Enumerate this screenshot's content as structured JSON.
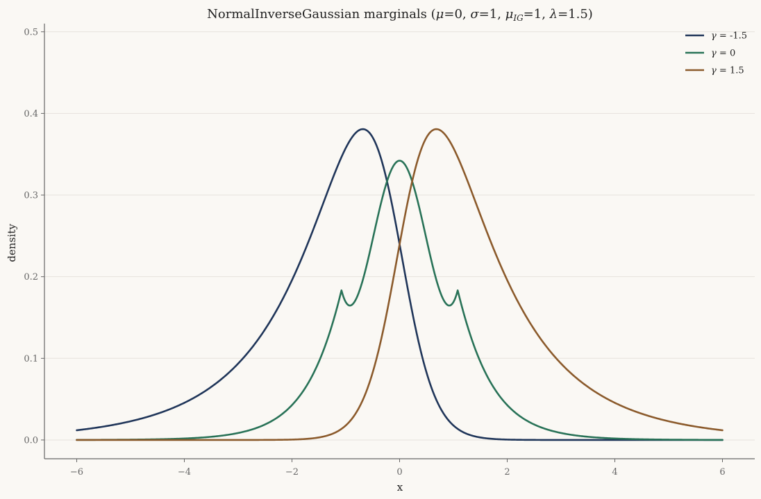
{
  "chart_data": {
    "type": "line",
    "title_main": "NormalInverseGaussian marginals (",
    "title_params": [
      {
        "sym": "μ",
        "sub": "",
        "eq": "=0, "
      },
      {
        "sym": "σ",
        "sub": "",
        "eq": "=1, "
      },
      {
        "sym": "μ",
        "sub": "IG",
        "eq": "=1, "
      },
      {
        "sym": "λ",
        "sub": "",
        "eq": "=1.5"
      }
    ],
    "title_close": ")",
    "xlabel": "x",
    "ylabel": "density",
    "xlim": [
      -6.6,
      6.6
    ],
    "ylim": [
      -0.023,
      0.51
    ],
    "x_ticks": [
      -6,
      -4,
      -2,
      0,
      2,
      4,
      6
    ],
    "x_tick_labels": [
      "−6",
      "−4",
      "−2",
      "0",
      "2",
      "4",
      "6"
    ],
    "y_ticks": [
      0.0,
      0.1,
      0.2,
      0.3,
      0.4,
      0.5
    ],
    "y_tick_labels": [
      "0.0",
      "0.1",
      "0.2",
      "0.3",
      "0.4",
      "0.5"
    ],
    "grid": "horizontal",
    "legend_position": "top-right",
    "model": {
      "mu": 0,
      "sigma": 1,
      "mu_ig": 1,
      "lambda": 1.5,
      "x_min": -6,
      "x_max": 6
    },
    "series": [
      {
        "name": "γ = -1.5",
        "gamma": -1.5,
        "color": "#1f3559"
      },
      {
        "name": "γ = 0",
        "gamma": 0,
        "color": "#287257"
      },
      {
        "name": "γ = 1.5",
        "gamma": 1.5,
        "color": "#8b5a2b"
      }
    ]
  }
}
